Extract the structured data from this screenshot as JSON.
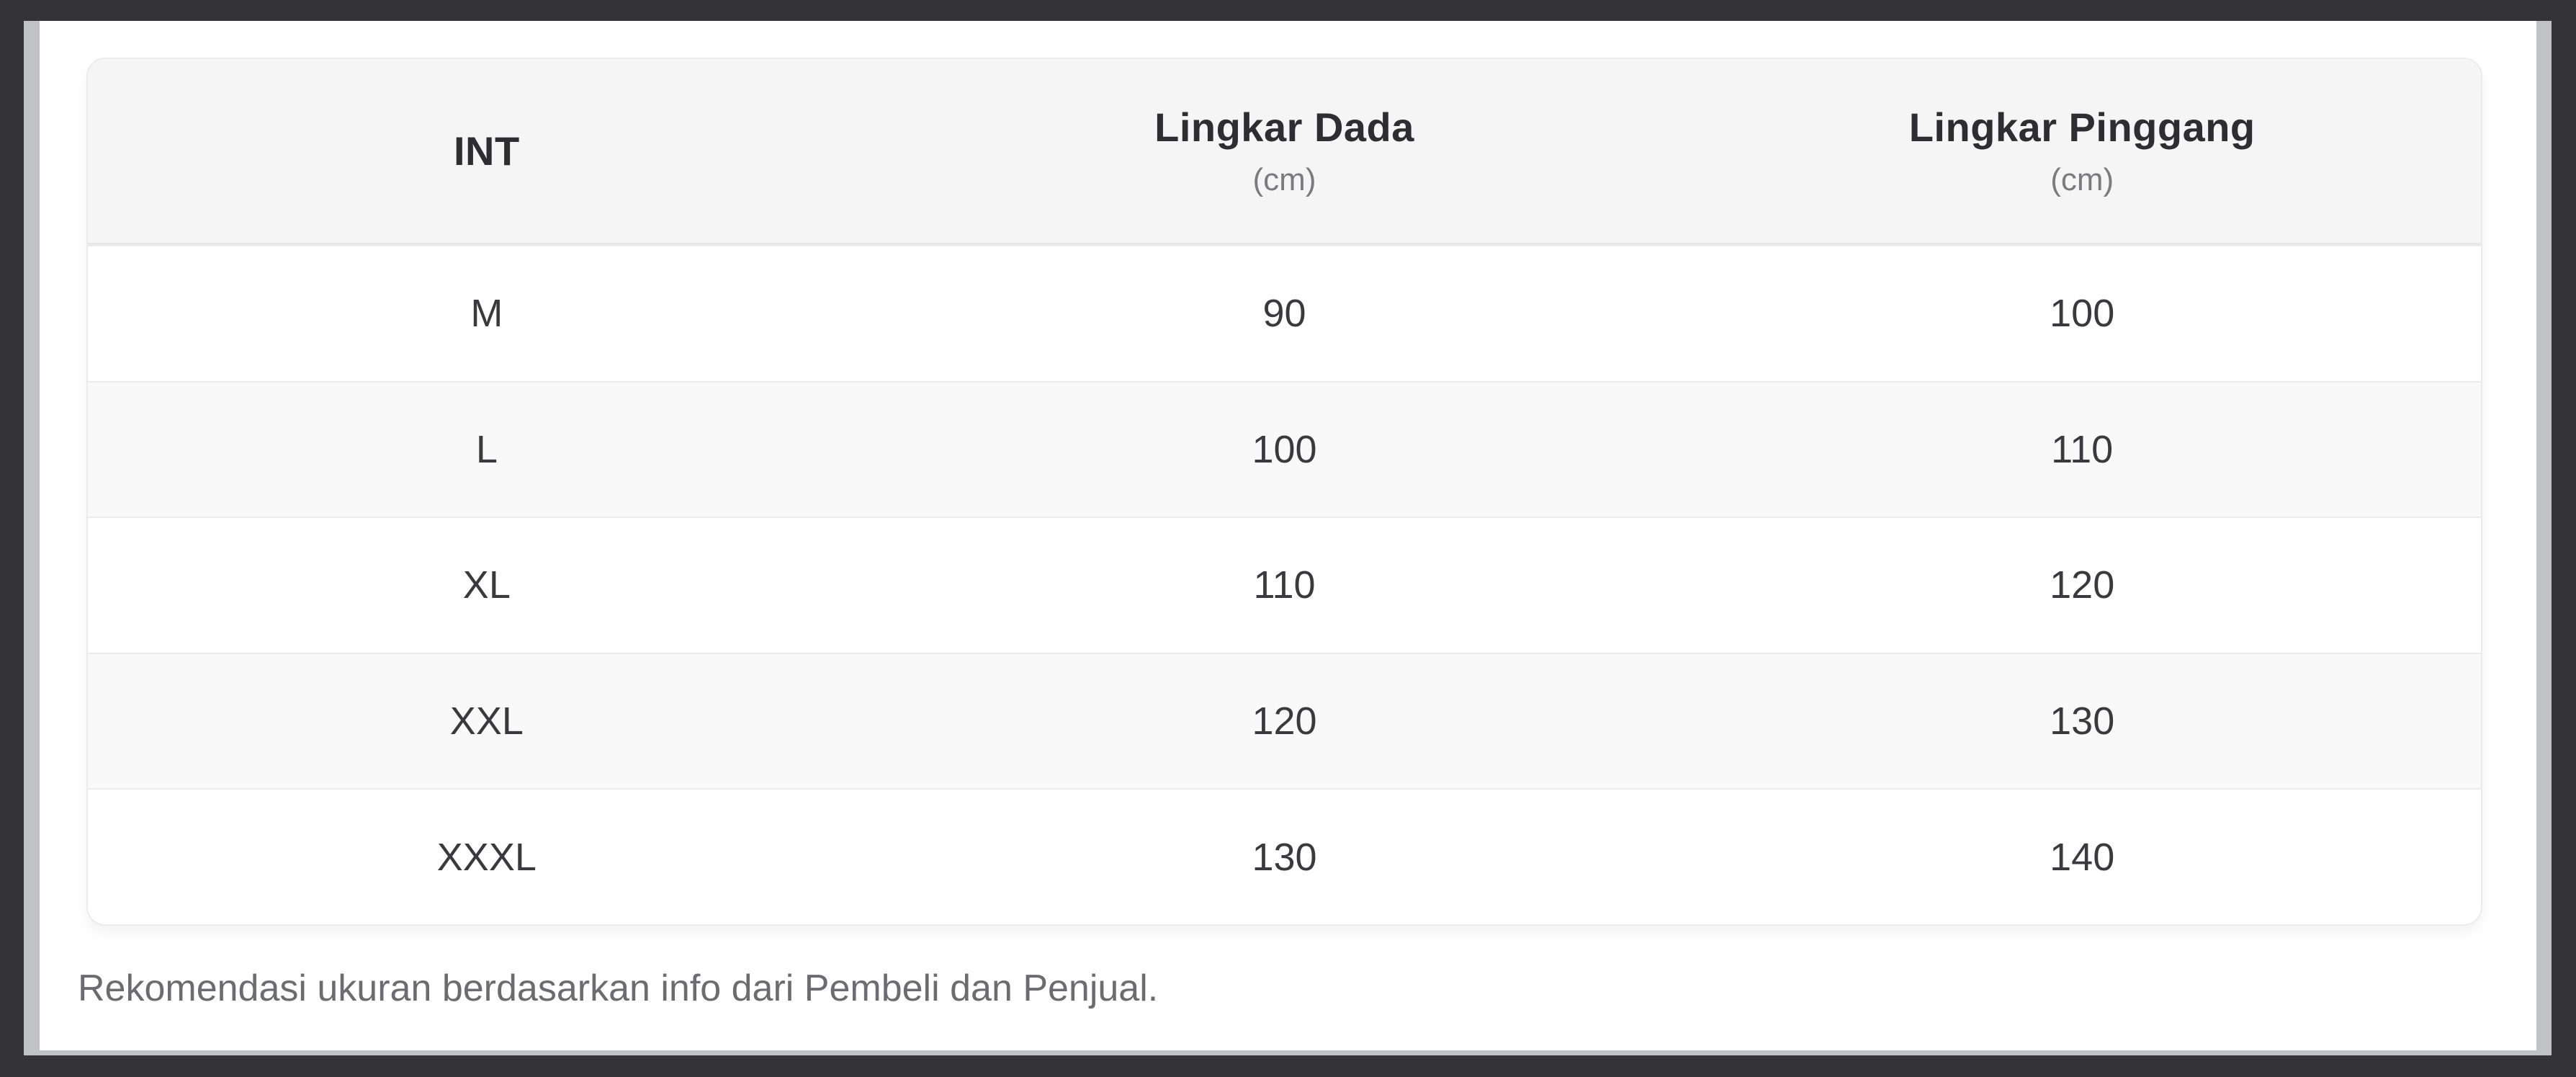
{
  "frame": {
    "outer_background": "#343335",
    "edge_strip_color": "#c0c2c5",
    "page_background": "#ffffff"
  },
  "size_chart": {
    "columns": [
      {
        "label": "INT",
        "unit": ""
      },
      {
        "label": "Lingkar Dada",
        "unit": "(cm)"
      },
      {
        "label": "Lingkar Pinggang",
        "unit": "(cm)"
      }
    ],
    "rows": [
      {
        "size": "M",
        "lingkar_dada": "90",
        "lingkar_pinggang": "100"
      },
      {
        "size": "L",
        "lingkar_dada": "100",
        "lingkar_pinggang": "110"
      },
      {
        "size": "XL",
        "lingkar_dada": "110",
        "lingkar_pinggang": "120"
      },
      {
        "size": "XXL",
        "lingkar_dada": "120",
        "lingkar_pinggang": "130"
      },
      {
        "size": "XXXL",
        "lingkar_dada": "130",
        "lingkar_pinggang": "140"
      }
    ],
    "footnote": "Rekomendasi ukuran berdasarkan info dari Pembeli dan Penjual.",
    "colors": {
      "header_background": "#f5f5f6",
      "zebra_row_background": "#f9f9fa",
      "row_divider": "#ececee",
      "header_text": "#2e2e32",
      "unit_text": "#7b7b7f",
      "cell_text": "#3a3a3e",
      "footnote_text": "#6b6b70"
    }
  }
}
